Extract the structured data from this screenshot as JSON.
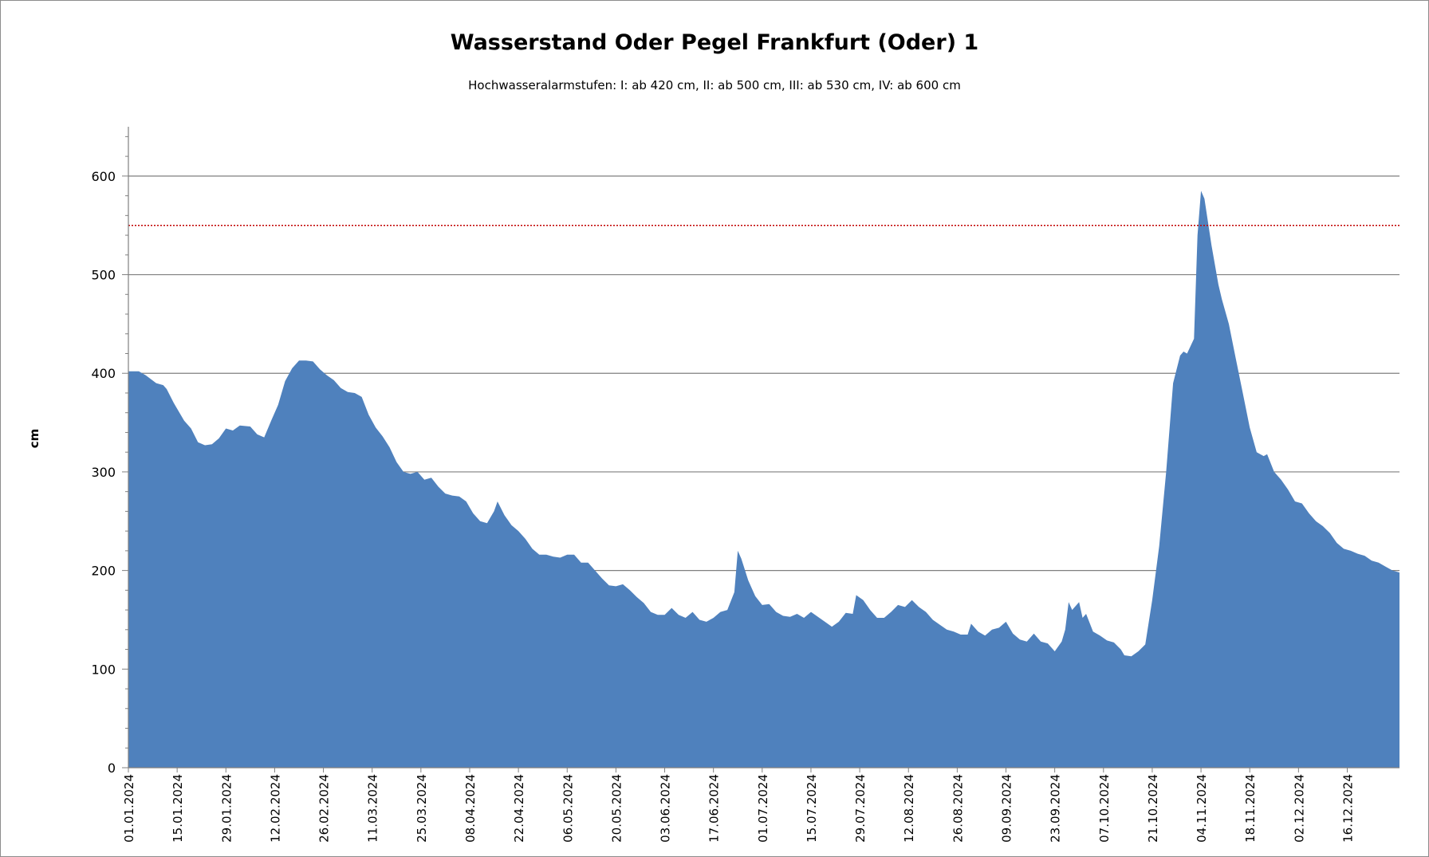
{
  "chart_data": {
    "type": "area",
    "title": "Wasserstand Oder Pegel Frankfurt (Oder) 1",
    "subtitle": "Hochwasseralarmstufen: I: ab 420 cm, II: ab 500 cm, III: ab 530 cm,  IV: ab 600 cm",
    "xlabel": "",
    "ylabel": "cm",
    "ylim": [
      0,
      650
    ],
    "yticks": [
      0,
      100,
      200,
      300,
      400,
      500,
      600
    ],
    "grid": "horizontal major",
    "legend": "none",
    "colors": {
      "area": "#4f81bd",
      "reference_line": "#c00000",
      "grid": "#7f7f7f"
    },
    "reference_line": {
      "y": 550,
      "style": "dotted"
    },
    "xticks": [
      "01.01.2024",
      "15.01.2024",
      "29.01.2024",
      "12.02.2024",
      "26.02.2024",
      "11.03.2024",
      "25.03.2024",
      "08.04.2024",
      "22.04.2024",
      "06.05.2024",
      "20.05.2024",
      "03.06.2024",
      "17.06.2024",
      "01.07.2024",
      "15.07.2024",
      "29.07.2024",
      "12.08.2024",
      "26.08.2024",
      "09.09.2024",
      "23.09.2024",
      "07.10.2024",
      "21.10.2024",
      "04.11.2024",
      "18.11.2024",
      "02.12.2024",
      "16.12.2024"
    ],
    "series": [
      {
        "x_start": "2024-01-01",
        "x_end": "2024-12-31",
        "points": [
          [
            "2024-01-01",
            402
          ],
          [
            "2024-01-04",
            402
          ],
          [
            "2024-01-06",
            398
          ],
          [
            "2024-01-09",
            390
          ],
          [
            "2024-01-11",
            388
          ],
          [
            "2024-01-12",
            384
          ],
          [
            "2024-01-14",
            370
          ],
          [
            "2024-01-17",
            352
          ],
          [
            "2024-01-19",
            344
          ],
          [
            "2024-01-21",
            330
          ],
          [
            "2024-01-23",
            327
          ],
          [
            "2024-01-25",
            328
          ],
          [
            "2024-01-27",
            334
          ],
          [
            "2024-01-29",
            344
          ],
          [
            "2024-01-31",
            342
          ],
          [
            "2024-02-02",
            347
          ],
          [
            "2024-02-05",
            346
          ],
          [
            "2024-02-07",
            338
          ],
          [
            "2024-02-09",
            335
          ],
          [
            "2024-02-11",
            352
          ],
          [
            "2024-02-13",
            368
          ],
          [
            "2024-02-15",
            392
          ],
          [
            "2024-02-17",
            405
          ],
          [
            "2024-02-19",
            413
          ],
          [
            "2024-02-21",
            413
          ],
          [
            "2024-02-23",
            412
          ],
          [
            "2024-02-25",
            404
          ],
          [
            "2024-02-27",
            398
          ],
          [
            "2024-02-29",
            393
          ],
          [
            "2024-03-02",
            385
          ],
          [
            "2024-03-04",
            381
          ],
          [
            "2024-03-06",
            380
          ],
          [
            "2024-03-08",
            376
          ],
          [
            "2024-03-10",
            358
          ],
          [
            "2024-03-12",
            345
          ],
          [
            "2024-03-14",
            336
          ],
          [
            "2024-03-16",
            325
          ],
          [
            "2024-03-18",
            310
          ],
          [
            "2024-03-20",
            300
          ],
          [
            "2024-03-22",
            298
          ],
          [
            "2024-03-24",
            300
          ],
          [
            "2024-03-26",
            292
          ],
          [
            "2024-03-28",
            294
          ],
          [
            "2024-03-30",
            285
          ],
          [
            "2024-04-01",
            278
          ],
          [
            "2024-04-03",
            276
          ],
          [
            "2024-04-05",
            275
          ],
          [
            "2024-04-07",
            270
          ],
          [
            "2024-04-09",
            258
          ],
          [
            "2024-04-11",
            250
          ],
          [
            "2024-04-13",
            248
          ],
          [
            "2024-04-15",
            260
          ],
          [
            "2024-04-16",
            270
          ],
          [
            "2024-04-18",
            256
          ],
          [
            "2024-04-20",
            246
          ],
          [
            "2024-04-22",
            240
          ],
          [
            "2024-04-24",
            232
          ],
          [
            "2024-04-26",
            222
          ],
          [
            "2024-04-28",
            216
          ],
          [
            "2024-04-30",
            216
          ],
          [
            "2024-05-02",
            214
          ],
          [
            "2024-05-04",
            213
          ],
          [
            "2024-05-06",
            216
          ],
          [
            "2024-05-08",
            216
          ],
          [
            "2024-05-10",
            208
          ],
          [
            "2024-05-12",
            208
          ],
          [
            "2024-05-14",
            200
          ],
          [
            "2024-05-16",
            192
          ],
          [
            "2024-05-18",
            185
          ],
          [
            "2024-05-20",
            184
          ],
          [
            "2024-05-22",
            186
          ],
          [
            "2024-05-24",
            180
          ],
          [
            "2024-05-26",
            173
          ],
          [
            "2024-05-28",
            167
          ],
          [
            "2024-05-30",
            158
          ],
          [
            "2024-06-01",
            155
          ],
          [
            "2024-06-03",
            155
          ],
          [
            "2024-06-05",
            162
          ],
          [
            "2024-06-07",
            155
          ],
          [
            "2024-06-09",
            152
          ],
          [
            "2024-06-11",
            158
          ],
          [
            "2024-06-13",
            150
          ],
          [
            "2024-06-15",
            148
          ],
          [
            "2024-06-17",
            152
          ],
          [
            "2024-06-19",
            158
          ],
          [
            "2024-06-21",
            160
          ],
          [
            "2024-06-23",
            178
          ],
          [
            "2024-06-24",
            220
          ],
          [
            "2024-06-25",
            212
          ],
          [
            "2024-06-27",
            190
          ],
          [
            "2024-06-29",
            174
          ],
          [
            "2024-07-01",
            165
          ],
          [
            "2024-07-03",
            166
          ],
          [
            "2024-07-05",
            158
          ],
          [
            "2024-07-07",
            154
          ],
          [
            "2024-07-09",
            153
          ],
          [
            "2024-07-11",
            156
          ],
          [
            "2024-07-13",
            152
          ],
          [
            "2024-07-15",
            158
          ],
          [
            "2024-07-17",
            153
          ],
          [
            "2024-07-19",
            148
          ],
          [
            "2024-07-21",
            143
          ],
          [
            "2024-07-23",
            148
          ],
          [
            "2024-07-25",
            157
          ],
          [
            "2024-07-27",
            156
          ],
          [
            "2024-07-28",
            175
          ],
          [
            "2024-07-30",
            170
          ],
          [
            "2024-08-01",
            160
          ],
          [
            "2024-08-03",
            152
          ],
          [
            "2024-08-05",
            152
          ],
          [
            "2024-08-07",
            158
          ],
          [
            "2024-08-09",
            165
          ],
          [
            "2024-08-11",
            163
          ],
          [
            "2024-08-13",
            170
          ],
          [
            "2024-08-15",
            163
          ],
          [
            "2024-08-17",
            158
          ],
          [
            "2024-08-19",
            150
          ],
          [
            "2024-08-21",
            145
          ],
          [
            "2024-08-23",
            140
          ],
          [
            "2024-08-25",
            138
          ],
          [
            "2024-08-27",
            135
          ],
          [
            "2024-08-29",
            135
          ],
          [
            "2024-08-30",
            146
          ],
          [
            "2024-09-01",
            138
          ],
          [
            "2024-09-03",
            134
          ],
          [
            "2024-09-05",
            140
          ],
          [
            "2024-09-07",
            142
          ],
          [
            "2024-09-09",
            148
          ],
          [
            "2024-09-11",
            136
          ],
          [
            "2024-09-13",
            130
          ],
          [
            "2024-09-15",
            128
          ],
          [
            "2024-09-17",
            136
          ],
          [
            "2024-09-19",
            128
          ],
          [
            "2024-09-21",
            126
          ],
          [
            "2024-09-23",
            118
          ],
          [
            "2024-09-25",
            128
          ],
          [
            "2024-09-26",
            140
          ],
          [
            "2024-09-27",
            168
          ],
          [
            "2024-09-28",
            160
          ],
          [
            "2024-09-30",
            168
          ],
          [
            "2024-10-01",
            152
          ],
          [
            "2024-10-02",
            156
          ],
          [
            "2024-10-04",
            138
          ],
          [
            "2024-10-06",
            134
          ],
          [
            "2024-10-08",
            129
          ],
          [
            "2024-10-10",
            127
          ],
          [
            "2024-10-12",
            120
          ],
          [
            "2024-10-13",
            114
          ],
          [
            "2024-10-15",
            113
          ],
          [
            "2024-10-17",
            118
          ],
          [
            "2024-10-19",
            125
          ],
          [
            "2024-10-21",
            170
          ],
          [
            "2024-10-23",
            225
          ],
          [
            "2024-10-25",
            300
          ],
          [
            "2024-10-27",
            390
          ],
          [
            "2024-10-29",
            418
          ],
          [
            "2024-10-30",
            422
          ],
          [
            "2024-10-31",
            420
          ],
          [
            "2024-11-02",
            435
          ],
          [
            "2024-11-03",
            540
          ],
          [
            "2024-11-04",
            585
          ],
          [
            "2024-11-05",
            577
          ],
          [
            "2024-11-07",
            530
          ],
          [
            "2024-11-09",
            490
          ],
          [
            "2024-11-10",
            475
          ],
          [
            "2024-11-12",
            450
          ],
          [
            "2024-11-14",
            415
          ],
          [
            "2024-11-16",
            380
          ],
          [
            "2024-11-18",
            345
          ],
          [
            "2024-11-20",
            320
          ],
          [
            "2024-11-22",
            316
          ],
          [
            "2024-11-23",
            318
          ],
          [
            "2024-11-25",
            300
          ],
          [
            "2024-11-27",
            292
          ],
          [
            "2024-11-29",
            282
          ],
          [
            "2024-12-01",
            270
          ],
          [
            "2024-12-03",
            268
          ],
          [
            "2024-12-05",
            258
          ],
          [
            "2024-12-07",
            250
          ],
          [
            "2024-12-09",
            245
          ],
          [
            "2024-12-11",
            238
          ],
          [
            "2024-12-13",
            228
          ],
          [
            "2024-12-15",
            222
          ],
          [
            "2024-12-17",
            220
          ],
          [
            "2024-12-19",
            217
          ],
          [
            "2024-12-21",
            215
          ],
          [
            "2024-12-23",
            210
          ],
          [
            "2024-12-25",
            208
          ],
          [
            "2024-12-27",
            204
          ],
          [
            "2024-12-29",
            200
          ],
          [
            "2024-12-31",
            198
          ]
        ]
      }
    ],
    "x_axis_rendered_range_note_free": true
  }
}
